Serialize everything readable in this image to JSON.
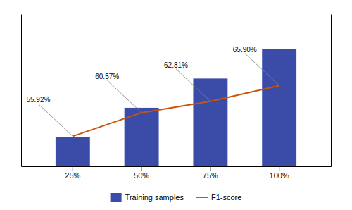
{
  "chart_data": {
    "type": "bar",
    "categories": [
      "25%",
      "50%",
      "75%",
      "100%"
    ],
    "series": [
      {
        "name": "Training samples",
        "type": "bar",
        "color": "#3B4BA8",
        "values": [
          25,
          50,
          75,
          100
        ]
      },
      {
        "name": "F1-score",
        "type": "line",
        "axis": "y2",
        "color": "#C8550A",
        "values": [
          55.92,
          60.57,
          62.81,
          65.9
        ],
        "value_labels": [
          "55.92%",
          "60.57%",
          "62.81%",
          "65.90%"
        ],
        "data_labels": true
      }
    ],
    "ylim": [
      0,
      130
    ],
    "y2lim": [
      50,
      80
    ],
    "tick_labels": "x",
    "legend": "bottom"
  }
}
